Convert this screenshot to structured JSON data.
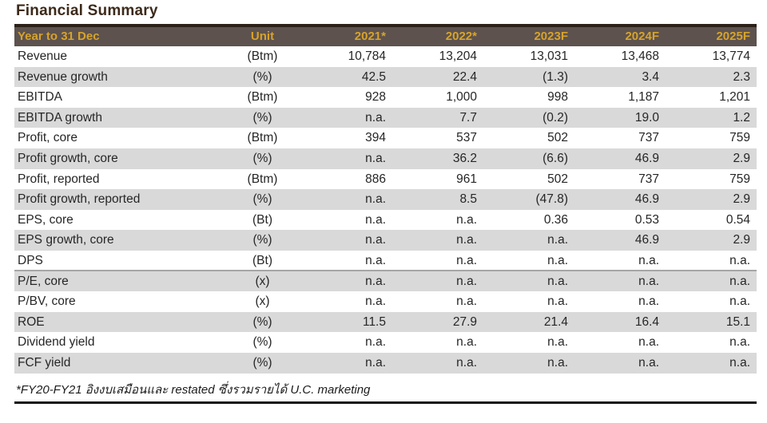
{
  "title": "Financial Summary",
  "table": {
    "columns": [
      "Year to 31 Dec",
      "Unit",
      "2021*",
      "2022*",
      "2023F",
      "2024F",
      "2025F"
    ],
    "rows": [
      {
        "label": "Revenue",
        "unit": "(Btm)",
        "values": [
          "10,784",
          "13,204",
          "13,031",
          "13,468",
          "13,774"
        ]
      },
      {
        "label": "Revenue growth",
        "unit": "(%)",
        "values": [
          "42.5",
          "22.4",
          "(1.3)",
          "3.4",
          "2.3"
        ]
      },
      {
        "label": "EBITDA",
        "unit": "(Btm)",
        "values": [
          "928",
          "1,000",
          "998",
          "1,187",
          "1,201"
        ]
      },
      {
        "label": "EBITDA growth",
        "unit": "(%)",
        "values": [
          "n.a.",
          "7.7",
          "(0.2)",
          "19.0",
          "1.2"
        ]
      },
      {
        "label": "Profit, core",
        "unit": "(Btm)",
        "values": [
          "394",
          "537",
          "502",
          "737",
          "759"
        ]
      },
      {
        "label": "Profit growth, core",
        "unit": "(%)",
        "values": [
          "n.a.",
          "36.2",
          "(6.6)",
          "46.9",
          "2.9"
        ]
      },
      {
        "label": "Profit, reported",
        "unit": "(Btm)",
        "values": [
          "886",
          "961",
          "502",
          "737",
          "759"
        ]
      },
      {
        "label": "Profit growth, reported",
        "unit": "(%)",
        "values": [
          "n.a.",
          "8.5",
          "(47.8)",
          "46.9",
          "2.9"
        ]
      },
      {
        "label": "EPS, core",
        "unit": "(Bt)",
        "values": [
          "n.a.",
          "n.a.",
          "0.36",
          "0.53",
          "0.54"
        ]
      },
      {
        "label": "EPS growth, core",
        "unit": "(%)",
        "values": [
          "n.a.",
          "n.a.",
          "n.a.",
          "46.9",
          "2.9"
        ]
      },
      {
        "label": "DPS",
        "unit": "(Bt)",
        "values": [
          "n.a.",
          "n.a.",
          "n.a.",
          "n.a.",
          "n.a."
        ],
        "divider_after": true
      },
      {
        "label": "P/E, core",
        "unit": "(x)",
        "values": [
          "n.a.",
          "n.a.",
          "n.a.",
          "n.a.",
          "n.a."
        ]
      },
      {
        "label": "P/BV, core",
        "unit": "(x)",
        "values": [
          "n.a.",
          "n.a.",
          "n.a.",
          "n.a.",
          "n.a."
        ]
      },
      {
        "label": "ROE",
        "unit": "(%)",
        "values": [
          "11.5",
          "27.9",
          "21.4",
          "16.4",
          "15.1"
        ]
      },
      {
        "label": "Dividend yield",
        "unit": "(%)",
        "values": [
          "n.a.",
          "n.a.",
          "n.a.",
          "n.a.",
          "n.a."
        ]
      },
      {
        "label": "FCF yield",
        "unit": "(%)",
        "values": [
          "n.a.",
          "n.a.",
          "n.a.",
          "n.a.",
          "n.a."
        ]
      }
    ],
    "footnote": "*FY20-FY21 อิงงบเสมือนและ restated ซึ่งรวมรายได้ U.C. marketing"
  },
  "colors": {
    "header_bg": "#5d524e",
    "header_text": "#d7a32b",
    "title_text": "#3c2a1a",
    "top_border": "#2b2118",
    "stripe": "#d9d9d9",
    "divider": "#a6a6a6",
    "bottom_border": "#141414"
  }
}
